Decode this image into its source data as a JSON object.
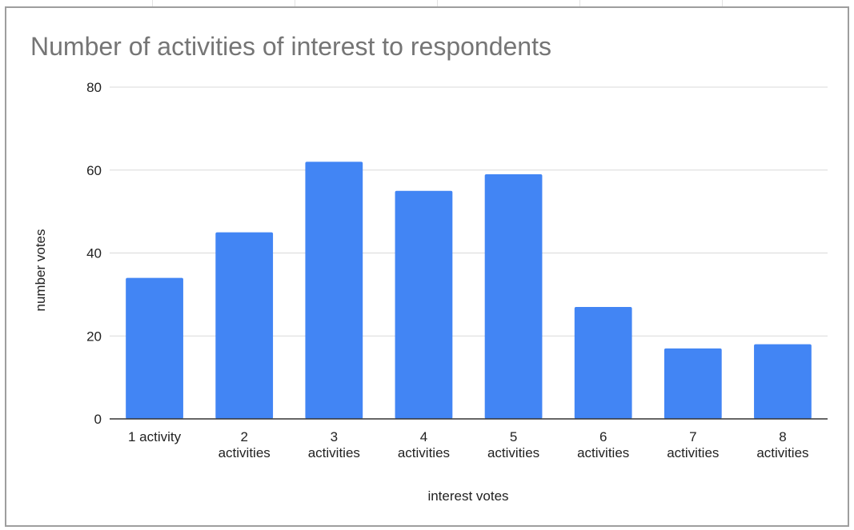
{
  "chart_data": {
    "type": "bar",
    "title": "Number of activities of interest to respondents",
    "xlabel": "interest votes",
    "ylabel": "number votes",
    "categories": [
      "1 activity",
      "2 activities",
      "3 activities",
      "4 activities",
      "5 activities",
      "6 activities",
      "7 activities",
      "8 activities"
    ],
    "category_lines": [
      [
        "1 activity"
      ],
      [
        "2",
        "activities"
      ],
      [
        "3",
        "activities"
      ],
      [
        "4",
        "activities"
      ],
      [
        "5",
        "activities"
      ],
      [
        "6",
        "activities"
      ],
      [
        "7",
        "activities"
      ],
      [
        "8",
        "activities"
      ]
    ],
    "values": [
      34,
      45,
      62,
      55,
      59,
      27,
      17,
      18
    ],
    "ylim": [
      0,
      80
    ],
    "yticks": [
      0,
      20,
      40,
      60,
      80
    ],
    "grid": true,
    "legend": "none",
    "bar_color": "#4285f4",
    "grid_color": "#d9d9d9",
    "axis_color": "#333333"
  }
}
